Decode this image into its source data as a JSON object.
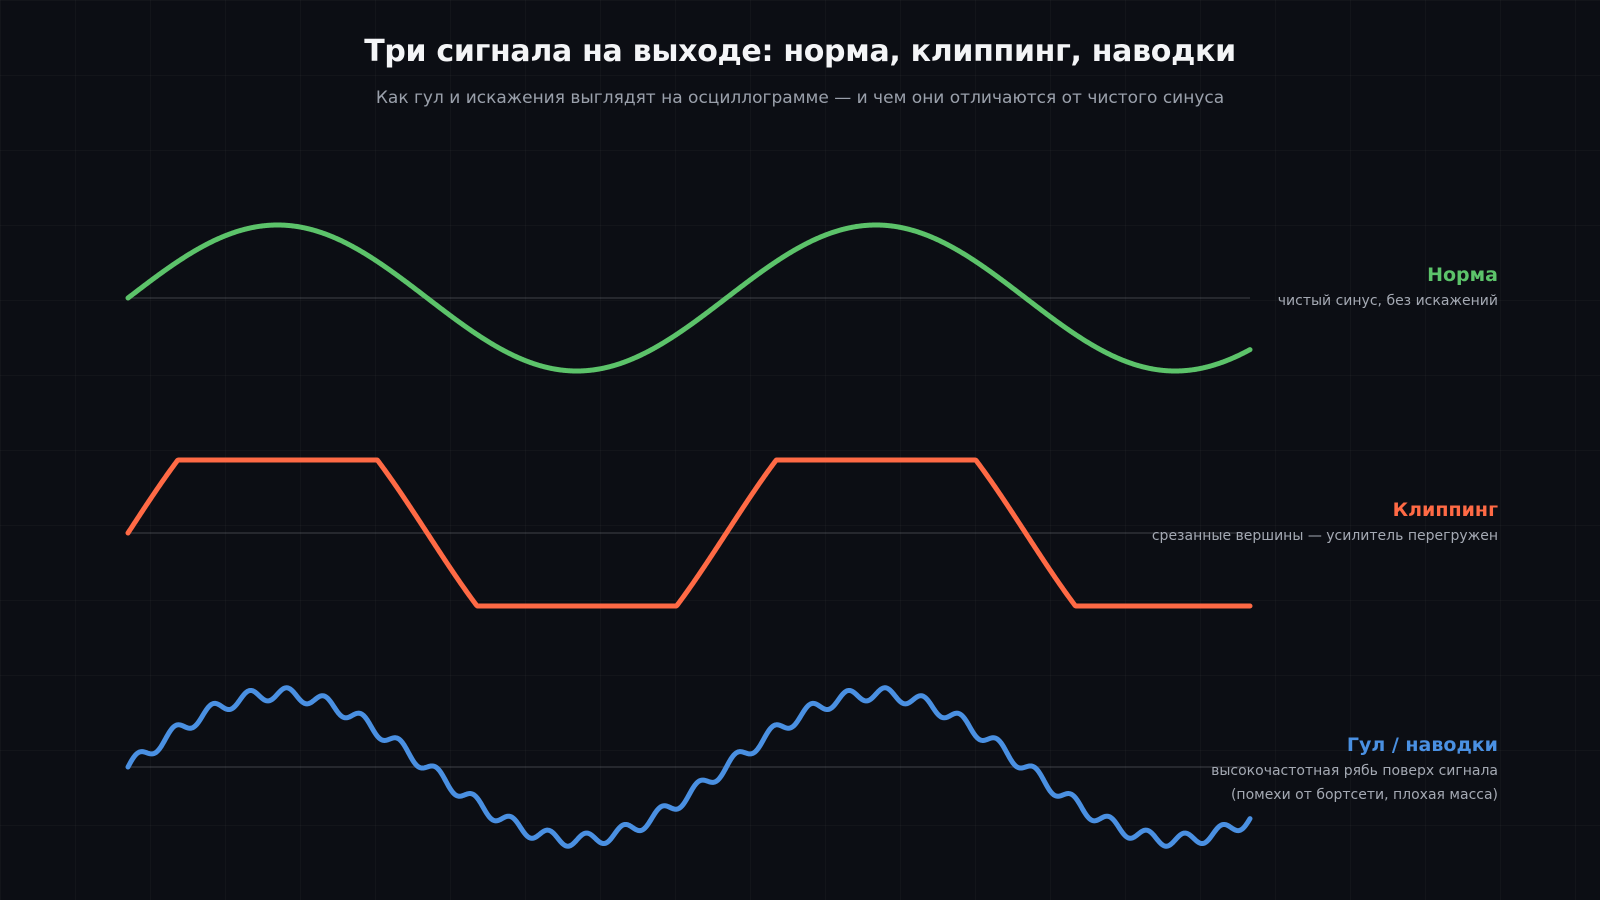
{
  "header": {
    "title": "Три сигнала на выходе: норма, клиппинг, наводки",
    "subtitle": "Как гул и искажения выглядят на осциллограмме — и чем они отличаются от чистого синуса"
  },
  "chart_data": {
    "type": "line",
    "title": "Три сигнала на выходе: норма, клиппинг, наводки",
    "subtitle": "Как гул и искажения выглядят на осциллограмме — и чем они отличаются от чистого синуса",
    "grid": true,
    "x": {
      "periods": 1.875,
      "start_phase": 0
    },
    "series": [
      {
        "name": "Норма",
        "description": "чистый синус, без искажений",
        "color": "#5cc36a",
        "shape": "sine",
        "amplitude": 1.0
      },
      {
        "name": "Клиппинг",
        "description": "срезанные вершины — усилитель перегружен",
        "color": "#ff6a45",
        "shape": "clipped-sine",
        "amplitude": 1.0,
        "clip_level": 0.5
      },
      {
        "name": "Гул / наводки",
        "description_lines": [
          "высокочастотная рябь поверх сигнала",
          "(помехи от бортсети, плохая масса)"
        ],
        "color": "#4a90e2",
        "shape": "sine-with-ripple",
        "amplitude": 1.0,
        "ripple_amplitude": 0.09,
        "ripple_cycles_per_period": 16
      }
    ]
  }
}
